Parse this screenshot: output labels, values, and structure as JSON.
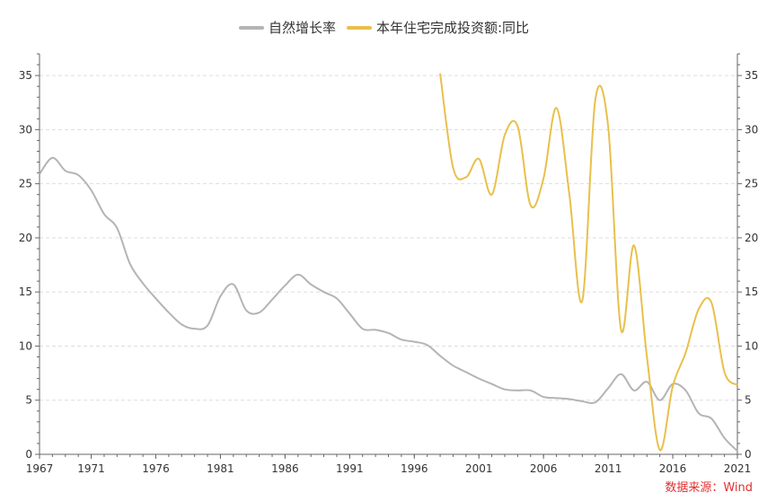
{
  "chart_data": {
    "type": "line",
    "x_range": [
      1967,
      2021
    ],
    "x_ticks": [
      "1967",
      "1971",
      "1976",
      "1981",
      "1986",
      "1991",
      "1996",
      "2001",
      "2006",
      "2011",
      "2016",
      "2021"
    ],
    "ylim": [
      0,
      37
    ],
    "y_ticks": [
      0,
      5,
      10,
      15,
      20,
      25,
      30,
      35
    ],
    "grid": true,
    "legend_position": "top",
    "source": "数据来源：Wind",
    "series": [
      {
        "name": "自然增长率",
        "axis": "left",
        "color": "#b4b4b4",
        "points": [
          [
            1967,
            25.9
          ],
          [
            1968,
            27.4
          ],
          [
            1969,
            26.2
          ],
          [
            1970,
            25.8
          ],
          [
            1971,
            24.4
          ],
          [
            1972,
            22.2
          ],
          [
            1973,
            20.9
          ],
          [
            1974,
            17.6
          ],
          [
            1975,
            15.8
          ],
          [
            1976,
            14.4
          ],
          [
            1977,
            13.1
          ],
          [
            1978,
            12.0
          ],
          [
            1979,
            11.6
          ],
          [
            1980,
            11.9
          ],
          [
            1981,
            14.6
          ],
          [
            1982,
            15.7
          ],
          [
            1983,
            13.3
          ],
          [
            1984,
            13.1
          ],
          [
            1985,
            14.3
          ],
          [
            1986,
            15.6
          ],
          [
            1987,
            16.6
          ],
          [
            1988,
            15.7
          ],
          [
            1989,
            15.0
          ],
          [
            1990,
            14.4
          ],
          [
            1991,
            13.0
          ],
          [
            1992,
            11.6
          ],
          [
            1993,
            11.5
          ],
          [
            1994,
            11.2
          ],
          [
            1995,
            10.6
          ],
          [
            1996,
            10.4
          ],
          [
            1997,
            10.1
          ],
          [
            1998,
            9.1
          ],
          [
            1999,
            8.2
          ],
          [
            2000,
            7.6
          ],
          [
            2001,
            7.0
          ],
          [
            2002,
            6.5
          ],
          [
            2003,
            6.0
          ],
          [
            2004,
            5.9
          ],
          [
            2005,
            5.9
          ],
          [
            2006,
            5.3
          ],
          [
            2007,
            5.2
          ],
          [
            2008,
            5.1
          ],
          [
            2009,
            4.9
          ],
          [
            2010,
            4.8
          ],
          [
            2011,
            6.1
          ],
          [
            2012,
            7.4
          ],
          [
            2013,
            5.9
          ],
          [
            2014,
            6.7
          ],
          [
            2015,
            5.0
          ],
          [
            2016,
            6.5
          ],
          [
            2017,
            5.9
          ],
          [
            2018,
            3.8
          ],
          [
            2019,
            3.3
          ],
          [
            2020,
            1.5
          ],
          [
            2021,
            0.3
          ]
        ]
      },
      {
        "name": "本年住宅完成投资额:同比",
        "axis": "right",
        "color": "#e8c04c",
        "points": [
          [
            1998,
            35.2
          ],
          [
            1999,
            26.5
          ],
          [
            2000,
            25.6
          ],
          [
            2001,
            27.3
          ],
          [
            2002,
            24.0
          ],
          [
            2003,
            29.5
          ],
          [
            2004,
            30.3
          ],
          [
            2005,
            23.0
          ],
          [
            2006,
            25.5
          ],
          [
            2007,
            32.0
          ],
          [
            2008,
            24.0
          ],
          [
            2009,
            14.2
          ],
          [
            2010,
            32.7
          ],
          [
            2011,
            30.3
          ],
          [
            2012,
            11.5
          ],
          [
            2013,
            19.3
          ],
          [
            2014,
            9.0
          ],
          [
            2015,
            0.4
          ],
          [
            2016,
            6.3
          ],
          [
            2017,
            9.4
          ],
          [
            2018,
            13.4
          ],
          [
            2019,
            14.0
          ],
          [
            2020,
            7.6
          ],
          [
            2021,
            6.4
          ]
        ]
      }
    ]
  }
}
